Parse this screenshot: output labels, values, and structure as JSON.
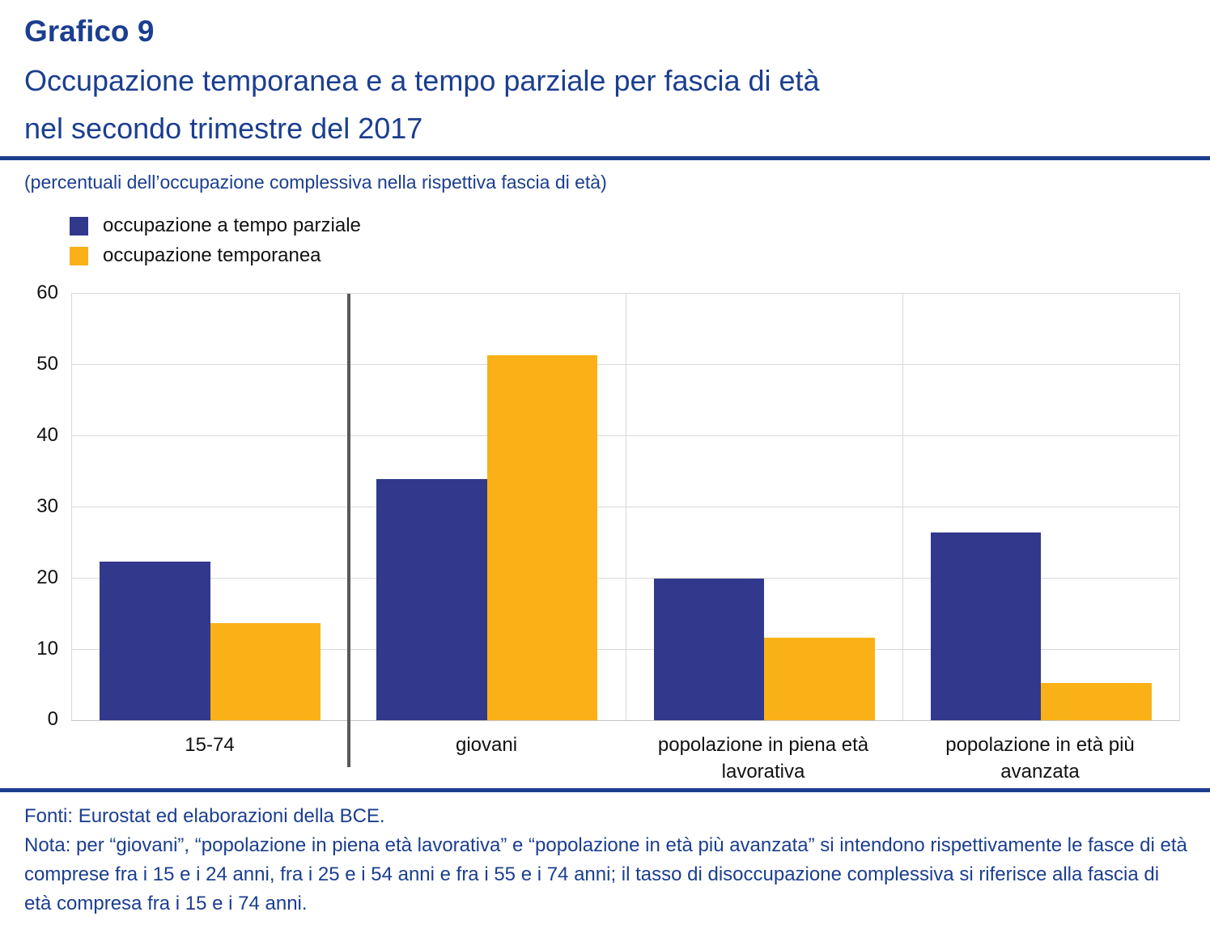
{
  "header": {
    "label": "Grafico 9",
    "title_line1": "Occupazione temporanea e a tempo parziale per fascia di età",
    "title_line2": "nel secondo trimestre del 2017",
    "units_note": "(percentuali dell’occupazione complessiva nella rispettiva fascia di età)"
  },
  "legend": [
    {
      "label": "occupazione a tempo parziale",
      "color": "#32388C"
    },
    {
      "label": "occupazione temporanea",
      "color": "#F9B117"
    }
  ],
  "chart_data": {
    "type": "bar",
    "title": "Occupazione temporanea e a tempo parziale per fascia di età nel secondo trimestre del 2017",
    "categories": [
      "15-74",
      "giovani",
      "popolazione in piena età lavorativa",
      "popolazione in età più avanzata"
    ],
    "series": [
      {
        "name": "occupazione a tempo parziale",
        "color": "#32388C",
        "values": [
          22.3,
          34.0,
          20.0,
          26.4
        ]
      },
      {
        "name": "occupazione temporanea",
        "color": "#F9B117",
        "values": [
          13.7,
          51.4,
          11.7,
          5.3
        ]
      }
    ],
    "xlabel": "",
    "ylabel": "",
    "ylim": [
      0,
      60
    ],
    "ytick_step": 10,
    "grid": true,
    "legend_position": "top-left",
    "separator_after_category": 0
  },
  "colors": {
    "heading_blue": "#1B3E8F",
    "bar_blue": "#32388C",
    "bar_yellow": "#F9B117",
    "gridline": "#D9D9D9",
    "axis_line": "#C4C4C4",
    "separator": "#595959"
  },
  "footer": {
    "source": "Fonti: Eurostat ed elaborazioni della BCE.",
    "note": "Nota: per “giovani”, “popolazione in piena età lavorativa” e “popolazione in età più avanzata” si intendono rispettivamente le fasce di età comprese fra i 15 e i 24 anni, fra i 25 e i 54 anni e fra i 55 e i 74 anni; il tasso di disoccupazione complessiva si riferisce alla fascia di età compresa fra i 15 e i 74 anni."
  }
}
